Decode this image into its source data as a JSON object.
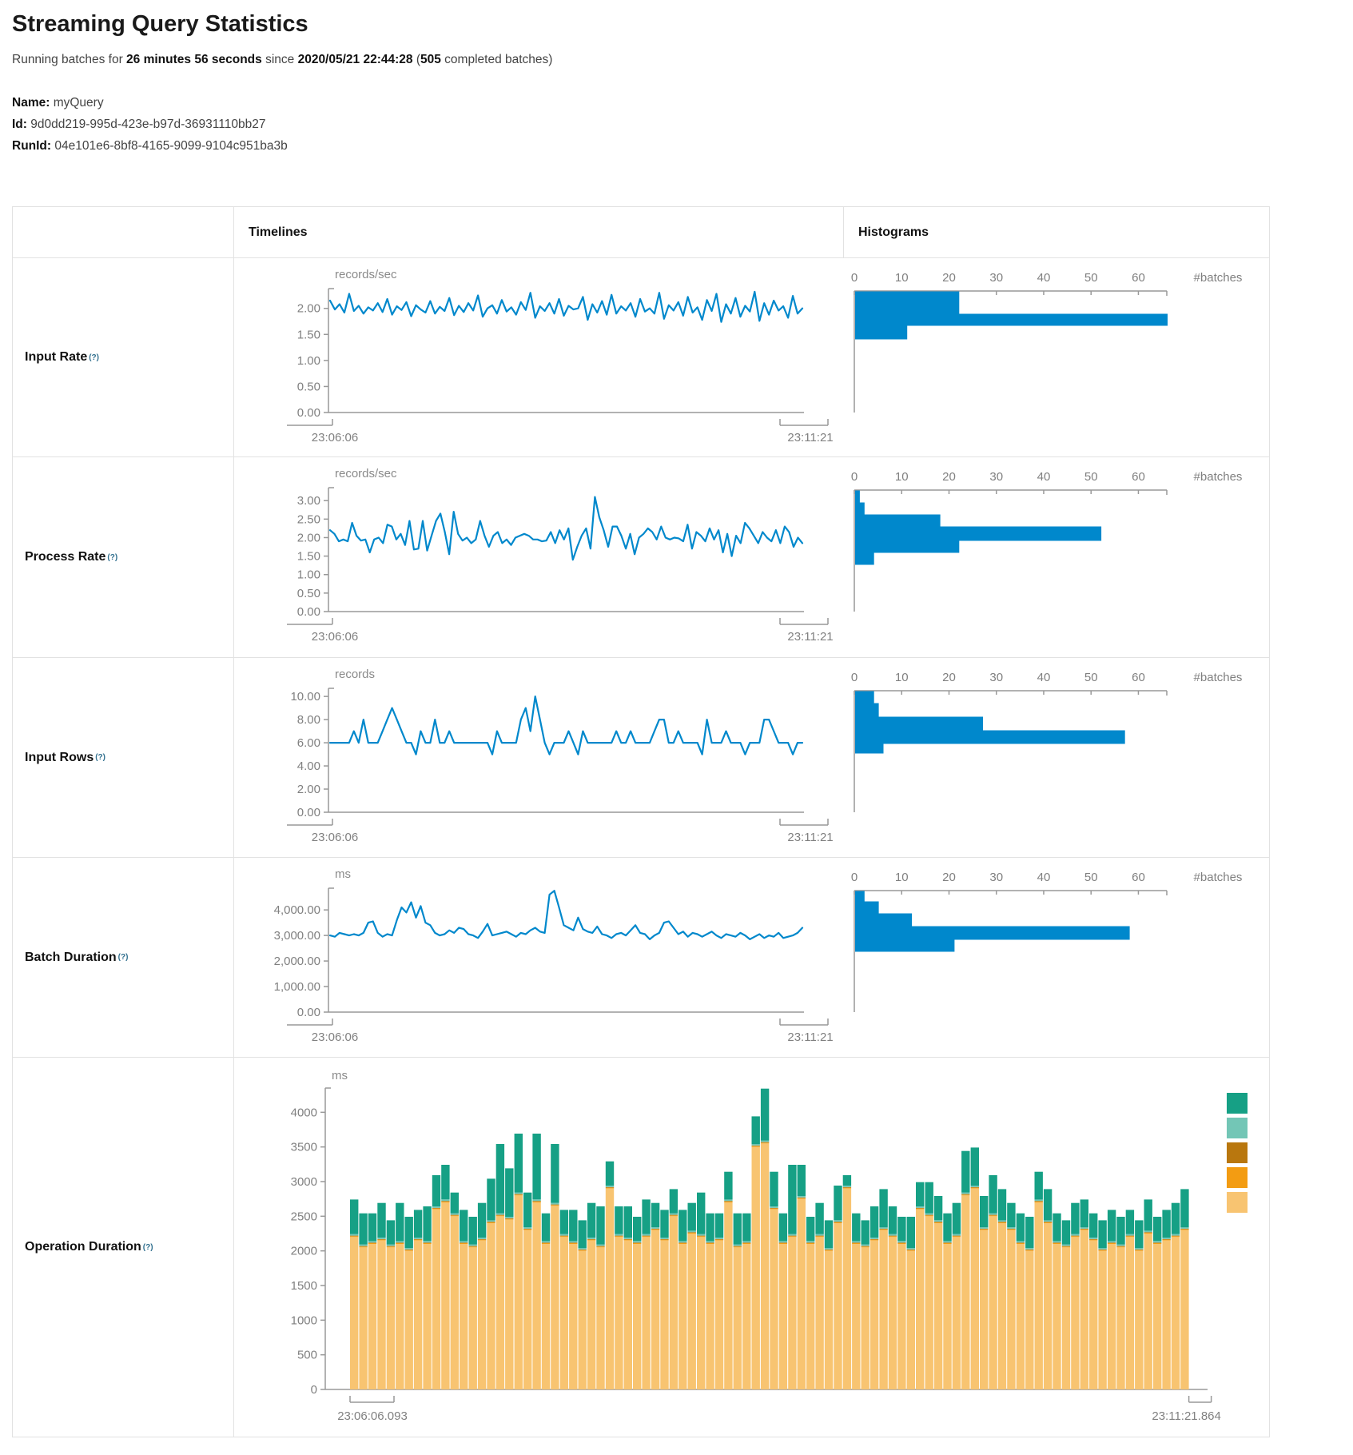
{
  "page": {
    "title": "Streaming Query Statistics",
    "running_prefix": "Running batches for",
    "duration": "26 minutes 56 seconds",
    "since_word": "since",
    "start_time": "2020/05/21 22:44:28",
    "paren_open": "(",
    "batches_count": "505",
    "batches_suffix": " completed batches)",
    "name_label": "Name:",
    "name_value": "myQuery",
    "id_label": "Id:",
    "id_value": "9d0dd219-995d-423e-b97d-36931110bb27",
    "runid_label": "RunId:",
    "runid_value": "04e101e6-8bf8-4165-9099-9104c951ba3b"
  },
  "table": {
    "col_timelines": "Timelines",
    "col_histograms": "Histograms",
    "help_marker": "(?)"
  },
  "theme": {
    "accent_blue": "#0088CC",
    "axis_gray": "#999999",
    "tick_text": "#808080",
    "border": "#e2e2e2"
  },
  "chart_data": [
    {
      "type": "line",
      "row_label": "Input Rate",
      "unit": "records/sec",
      "x_start": "23:06:06",
      "x_end": "23:11:21",
      "y_max": 2.38,
      "y_ticks": [
        {
          "v": 0,
          "label": "0.00"
        },
        {
          "v": 0.5,
          "label": "0.50"
        },
        {
          "v": 1,
          "label": "1.00"
        },
        {
          "v": 1.5,
          "label": "1.50"
        },
        {
          "v": 2,
          "label": "2.00"
        }
      ],
      "values": [
        2.15,
        1.98,
        2.08,
        1.92,
        2.28,
        1.95,
        2.05,
        1.9,
        2.02,
        1.96,
        2.1,
        1.93,
        2.18,
        1.88,
        2.04,
        1.97,
        2.12,
        1.85,
        2.06,
        1.98,
        1.92,
        2.14,
        1.9,
        2.03,
        1.95,
        2.2,
        1.87,
        2.05,
        1.93,
        2.1,
        1.96,
        2.25,
        1.84,
        2.0,
        2.06,
        1.9,
        2.16,
        1.94,
        2.02,
        1.88,
        2.12,
        1.97,
        2.3,
        1.82,
        2.04,
        1.95,
        2.1,
        1.9,
        2.18,
        1.86,
        2.05,
        1.98,
        2.0,
        2.22,
        1.78,
        2.08,
        1.92,
        2.14,
        1.88,
        2.26,
        1.9,
        2.04,
        1.96,
        2.1,
        1.84,
        2.18,
        1.94,
        2.0,
        1.9,
        2.3,
        1.8,
        2.06,
        1.96,
        2.12,
        1.86,
        2.22,
        1.92,
        2.02,
        1.78,
        2.16,
        1.95,
        2.28,
        1.74,
        2.08,
        1.9,
        2.2,
        1.84,
        2.05,
        1.94,
        2.32,
        1.76,
        2.1,
        1.88,
        2.15,
        1.96,
        2.04,
        1.82,
        2.24,
        1.9,
        2.0
      ],
      "histogram": {
        "label": "#batches",
        "tick_values": [
          0,
          10,
          20,
          30,
          40,
          50,
          60
        ],
        "axis_max": 66,
        "bins": [
          {
            "count": 22,
            "h": 28
          },
          {
            "count": 66,
            "h": 15
          },
          {
            "count": 11,
            "h": 17
          }
        ]
      }
    },
    {
      "type": "line",
      "row_label": "Process Rate",
      "unit": "records/sec",
      "x_start": "23:06:06",
      "x_end": "23:11:21",
      "y_max": 3.35,
      "y_ticks": [
        {
          "v": 0,
          "label": "0.00"
        },
        {
          "v": 0.5,
          "label": "0.50"
        },
        {
          "v": 1,
          "label": "1.00"
        },
        {
          "v": 1.5,
          "label": "1.50"
        },
        {
          "v": 2,
          "label": "2.00"
        },
        {
          "v": 2.5,
          "label": "2.50"
        },
        {
          "v": 3,
          "label": "3.00"
        }
      ],
      "values": [
        2.2,
        2.1,
        1.9,
        1.95,
        1.9,
        2.4,
        2.05,
        1.92,
        1.95,
        1.6,
        1.95,
        2.0,
        1.85,
        2.35,
        2.3,
        1.95,
        2.1,
        1.8,
        2.45,
        1.68,
        1.7,
        2.45,
        1.65,
        2.05,
        2.45,
        2.65,
        2.15,
        1.55,
        2.7,
        2.1,
        1.92,
        2.0,
        1.85,
        1.95,
        2.45,
        2.05,
        1.75,
        2.05,
        2.15,
        1.85,
        1.95,
        1.8,
        2.0,
        2.05,
        2.1,
        2.05,
        1.95,
        1.95,
        1.9,
        1.92,
        2.15,
        1.85,
        2.2,
        1.95,
        2.25,
        1.4,
        1.75,
        2.05,
        2.25,
        1.7,
        3.1,
        2.55,
        2.2,
        1.75,
        2.3,
        2.3,
        2.05,
        1.7,
        2.1,
        1.55,
        2.0,
        2.1,
        2.25,
        2.15,
        1.95,
        2.3,
        2.0,
        1.95,
        2.0,
        1.98,
        1.9,
        2.35,
        1.7,
        2.15,
        2.05,
        1.9,
        2.25,
        1.95,
        2.2,
        1.6,
        2.1,
        1.5,
        2.05,
        1.85,
        2.4,
        2.25,
        2.05,
        1.85,
        2.15,
        2.0,
        1.9,
        2.2,
        1.85,
        2.3,
        2.15,
        1.75,
        2.0,
        1.85
      ],
      "histogram": {
        "label": "#batches",
        "tick_values": [
          0,
          10,
          20,
          30,
          40,
          50,
          60
        ],
        "axis_max": 66,
        "bins": [
          {
            "count": 1,
            "h": 15
          },
          {
            "count": 2,
            "h": 15
          },
          {
            "count": 18,
            "h": 15
          },
          {
            "count": 52,
            "h": 18
          },
          {
            "count": 22,
            "h": 15
          },
          {
            "count": 4,
            "h": 15
          }
        ]
      }
    },
    {
      "type": "line",
      "row_label": "Input Rows",
      "unit": "records",
      "x_start": "23:06:06",
      "x_end": "23:11:21",
      "y_max": 10.7,
      "y_ticks": [
        {
          "v": 0,
          "label": "0.00"
        },
        {
          "v": 2,
          "label": "2.00"
        },
        {
          "v": 4,
          "label": "4.00"
        },
        {
          "v": 6,
          "label": "6.00"
        },
        {
          "v": 8,
          "label": "8.00"
        },
        {
          "v": 10,
          "label": "10.00"
        }
      ],
      "values": [
        6,
        6,
        6,
        6,
        6,
        7,
        6,
        8,
        6,
        6,
        6,
        7,
        8,
        9,
        8,
        7,
        6,
        6,
        5,
        7,
        6,
        6,
        8,
        6,
        6,
        7,
        6,
        6,
        6,
        6,
        6,
        6,
        6,
        6,
        5,
        7,
        6,
        6,
        6,
        6,
        8,
        9,
        7,
        10,
        8,
        6,
        5,
        6,
        6,
        6,
        7,
        6,
        5,
        7,
        6,
        6,
        6,
        6,
        6,
        6,
        7,
        6,
        6,
        7,
        6,
        6,
        6,
        6,
        7,
        8,
        8,
        6,
        6,
        7,
        6,
        6,
        6,
        6,
        5,
        8,
        6,
        6,
        6,
        7,
        6,
        6,
        6,
        5,
        6,
        6,
        6,
        8,
        8,
        7,
        6,
        6,
        6,
        5,
        6,
        6
      ],
      "histogram": {
        "label": "#batches",
        "tick_values": [
          0,
          10,
          20,
          30,
          40,
          50,
          60
        ],
        "axis_max": 66,
        "bins": [
          {
            "count": 4,
            "h": 15
          },
          {
            "count": 5,
            "h": 17
          },
          {
            "count": 27,
            "h": 17
          },
          {
            "count": 57,
            "h": 17
          },
          {
            "count": 6,
            "h": 12
          }
        ]
      }
    },
    {
      "type": "line",
      "row_label": "Batch Duration",
      "unit": "ms",
      "x_start": "23:06:06",
      "x_end": "23:11:21",
      "y_max": 4850,
      "y_ticks": [
        {
          "v": 0,
          "label": "0.00"
        },
        {
          "v": 1000,
          "label": "1,000.00"
        },
        {
          "v": 2000,
          "label": "2,000.00"
        },
        {
          "v": 3000,
          "label": "3,000.00"
        },
        {
          "v": 4000,
          "label": "4,000.00"
        }
      ],
      "values": [
        3000,
        2950,
        3100,
        3050,
        3000,
        3050,
        3000,
        3100,
        3500,
        3550,
        3100,
        2950,
        3050,
        3000,
        3600,
        4100,
        3900,
        4300,
        3700,
        4150,
        3500,
        3400,
        3100,
        3000,
        3050,
        3200,
        3100,
        3300,
        3250,
        3050,
        3000,
        2900,
        3150,
        3450,
        3000,
        3050,
        3100,
        3150,
        3050,
        2950,
        3100,
        3050,
        3200,
        3300,
        3150,
        3100,
        4600,
        4750,
        4100,
        3400,
        3300,
        3200,
        3700,
        3250,
        3150,
        3100,
        3350,
        3050,
        3000,
        2900,
        3050,
        3100,
        3000,
        3200,
        3400,
        3100,
        3050,
        2850,
        3000,
        3100,
        3500,
        3550,
        3300,
        3050,
        3150,
        2950,
        3100,
        3050,
        2950,
        3050,
        3150,
        3000,
        2900,
        3050,
        3000,
        2950,
        3100,
        3000,
        2850,
        2950,
        3050,
        2900,
        3000,
        2950,
        3100,
        2900,
        2950,
        3000,
        3100,
        3300
      ],
      "histogram": {
        "label": "#batches",
        "tick_values": [
          0,
          10,
          20,
          30,
          40,
          50,
          60
        ],
        "axis_max": 66,
        "bins": [
          {
            "count": 2,
            "h": 13
          },
          {
            "count": 5,
            "h": 15
          },
          {
            "count": 12,
            "h": 16
          },
          {
            "count": 58,
            "h": 17
          },
          {
            "count": 21,
            "h": 15
          }
        ]
      }
    },
    {
      "type": "stacked_bar",
      "row_label": "Operation Duration",
      "unit": "ms",
      "x_start": "23:06:06.093",
      "x_end": "23:11:21.864",
      "y_max": 4350,
      "y_ticks": [
        {
          "v": 0,
          "label": "0"
        },
        {
          "v": 500,
          "label": "500"
        },
        {
          "v": 1000,
          "label": "1000"
        },
        {
          "v": 1500,
          "label": "1500"
        },
        {
          "v": 2000,
          "label": "2000"
        },
        {
          "v": 2500,
          "label": "2500"
        },
        {
          "v": 3000,
          "label": "3000"
        },
        {
          "v": 3500,
          "label": "3500"
        },
        {
          "v": 4000,
          "label": "4000"
        }
      ],
      "legend_colors": [
        "#16A085",
        "#73C6B6",
        "#B9770E",
        "#F39C12",
        "#F8C471"
      ],
      "stack_colors_bottom_to_top": [
        "#F8C471",
        "#F39C12",
        "#B9770E",
        "#73C6B6",
        "#16A085"
      ],
      "mid_segments": [
        12,
        8,
        22
      ],
      "base": [
        2200,
        2050,
        2100,
        2150,
        2050,
        2100,
        2000,
        2150,
        2100,
        2600,
        2700,
        2500,
        2100,
        2050,
        2150,
        2400,
        2500,
        2450,
        2800,
        2300,
        2700,
        2100,
        2650,
        2200,
        2100,
        2000,
        2150,
        2050,
        2900,
        2200,
        2150,
        2100,
        2200,
        2300,
        2150,
        2500,
        2100,
        2250,
        2200,
        2100,
        2150,
        2700,
        2050,
        2100,
        3500,
        3550,
        2600,
        2100,
        2200,
        2750,
        2100,
        2200,
        2000,
        2400,
        2900,
        2100,
        2050,
        2150,
        2300,
        2200,
        2100,
        2000,
        2600,
        2500,
        2400,
        2100,
        2200,
        2800,
        2900,
        2300,
        2500,
        2400,
        2300,
        2100,
        2000,
        2700,
        2400,
        2100,
        2050,
        2200,
        2300,
        2150,
        2000,
        2100,
        2050,
        2200,
        2000,
        2250,
        2100,
        2150,
        2200,
        2300
      ],
      "top": [
        500,
        450,
        400,
        500,
        350,
        550,
        450,
        400,
        500,
        450,
        500,
        300,
        450,
        400,
        500,
        600,
        1000,
        700,
        850,
        500,
        950,
        400,
        850,
        350,
        450,
        400,
        500,
        550,
        350,
        400,
        450,
        350,
        500,
        350,
        400,
        350,
        450,
        400,
        600,
        400,
        350,
        400,
        450,
        400,
        400,
        750,
        500,
        400,
        1000,
        450,
        350,
        450,
        400,
        500,
        150,
        400,
        350,
        450,
        550,
        400,
        350,
        450,
        350,
        450,
        350,
        400,
        450,
        600,
        550,
        450,
        550,
        450,
        350,
        400,
        450,
        400,
        450,
        400,
        350,
        450,
        400,
        350,
        400,
        450,
        400,
        350,
        400,
        450,
        350,
        400,
        450,
        550
      ]
    }
  ]
}
